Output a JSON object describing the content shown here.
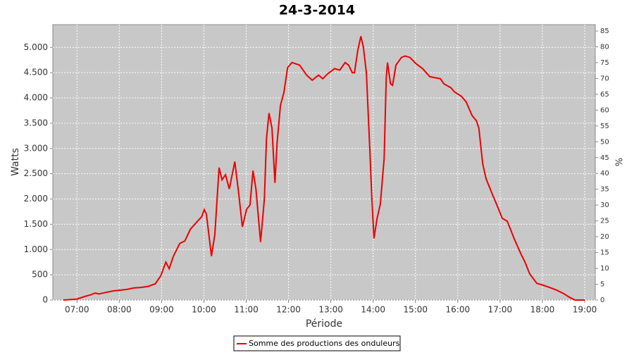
{
  "chart_data": {
    "type": "line",
    "title": "24-3-2014",
    "x_label": "Période",
    "y_label": "Watts",
    "y2_label": "%",
    "xlim": [
      6.43,
      19.25
    ],
    "xticks": [
      {
        "value": 7,
        "label": "07:00"
      },
      {
        "value": 8,
        "label": "08:00"
      },
      {
        "value": 9,
        "label": "09:00"
      },
      {
        "value": 10,
        "label": "10:00"
      },
      {
        "value": 11,
        "label": "11:00"
      },
      {
        "value": 12,
        "label": "12:00"
      },
      {
        "value": 13,
        "label": "13:00"
      },
      {
        "value": 14,
        "label": "14:00"
      },
      {
        "value": 15,
        "label": "15:00"
      },
      {
        "value": 16,
        "label": "16:00"
      },
      {
        "value": 17,
        "label": "17:00"
      },
      {
        "value": 18,
        "label": "18:00"
      },
      {
        "value": 19,
        "label": "19:00"
      }
    ],
    "ylim": [
      0,
      5450
    ],
    "yticks": [
      0,
      500,
      {
        "value": 1000,
        "label": "1.000"
      },
      {
        "value": 1500,
        "label": "1.500"
      },
      {
        "value": 2000,
        "label": "2.000"
      },
      {
        "value": 2500,
        "label": "2.500"
      },
      {
        "value": 3000,
        "label": "3.000"
      },
      {
        "value": 3500,
        "label": "3.500"
      },
      {
        "value": 4000,
        "label": "4.000"
      },
      {
        "value": 4500,
        "label": "4.500"
      },
      {
        "value": 5000,
        "label": "5.000"
      }
    ],
    "y2lim": [
      0,
      87
    ],
    "y2ticks": [
      0,
      5,
      10,
      15,
      20,
      25,
      30,
      35,
      40,
      45,
      50,
      55,
      60,
      65,
      70,
      75,
      80,
      85
    ],
    "grid": true,
    "legend": "bottom",
    "x": [
      6.68,
      6.85,
      7.0,
      7.18,
      7.35,
      7.43,
      7.52,
      7.68,
      7.85,
      8.18,
      8.35,
      8.51,
      8.68,
      8.85,
      8.98,
      9.1,
      9.18,
      9.28,
      9.43,
      9.55,
      9.68,
      9.85,
      9.95,
      10.01,
      10.06,
      10.18,
      10.26,
      10.36,
      10.43,
      10.51,
      10.6,
      10.73,
      10.81,
      10.91,
      11.01,
      11.09,
      11.16,
      11.23,
      11.34,
      11.43,
      11.48,
      11.54,
      11.61,
      11.68,
      11.73,
      11.81,
      11.89,
      11.98,
      12.08,
      12.26,
      12.43,
      12.56,
      12.71,
      12.81,
      12.93,
      13.09,
      13.21,
      13.34,
      13.42,
      13.51,
      13.56,
      13.64,
      13.71,
      13.77,
      13.84,
      13.92,
      13.97,
      14.02,
      14.09,
      14.17,
      14.26,
      14.31,
      14.34,
      14.41,
      14.46,
      14.54,
      14.67,
      14.76,
      14.87,
      15.01,
      15.17,
      15.34,
      15.59,
      15.67,
      15.84,
      15.92,
      16.09,
      16.2,
      16.34,
      16.44,
      16.5,
      16.59,
      16.67,
      16.84,
      16.94,
      17.05,
      17.17,
      17.34,
      17.5,
      17.59,
      17.7,
      17.87,
      18.0,
      18.17,
      18.33,
      18.5,
      18.63,
      18.77,
      19.0
    ],
    "series": [
      {
        "name": "Somme des productions des onduleurs",
        "color": "#ee0000",
        "values": [
          0,
          10,
          20,
          70,
          110,
          140,
          120,
          150,
          180,
          210,
          240,
          250,
          270,
          320,
          480,
          750,
          620,
          870,
          1120,
          1170,
          1400,
          1560,
          1650,
          1790,
          1700,
          870,
          1300,
          2620,
          2380,
          2480,
          2200,
          2740,
          2200,
          1450,
          1800,
          1880,
          2560,
          2200,
          1150,
          2000,
          3200,
          3700,
          3400,
          2320,
          3100,
          3850,
          4100,
          4600,
          4700,
          4650,
          4450,
          4350,
          4450,
          4380,
          4480,
          4580,
          4550,
          4700,
          4650,
          4500,
          4500,
          4950,
          5220,
          5000,
          4500,
          3000,
          2000,
          1220,
          1600,
          1900,
          2800,
          4400,
          4700,
          4280,
          4250,
          4650,
          4800,
          4830,
          4800,
          4680,
          4580,
          4420,
          4380,
          4280,
          4200,
          4120,
          4030,
          3920,
          3650,
          3550,
          3400,
          2700,
          2400,
          2050,
          1850,
          1620,
          1560,
          1200,
          900,
          750,
          520,
          330,
          300,
          250,
          200,
          130,
          60,
          0,
          0
        ]
      }
    ]
  }
}
